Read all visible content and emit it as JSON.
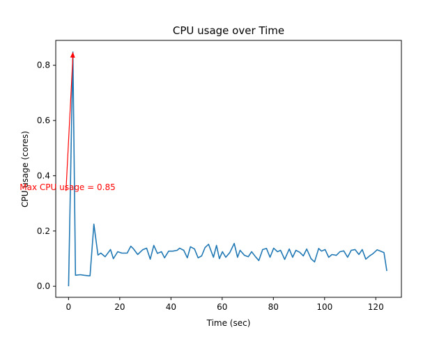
{
  "chart_data": {
    "type": "line",
    "title": "CPU usage over Time",
    "xlabel": "Time (sec)",
    "ylabel": "CPU usage (cores)",
    "xlim": [
      -5,
      130
    ],
    "ylim": [
      -0.04,
      0.89
    ],
    "xticks": [
      0,
      20,
      40,
      60,
      80,
      100,
      120
    ],
    "yticks": [
      0.0,
      0.2,
      0.4,
      0.6,
      0.8
    ],
    "ytick_labels": [
      "0.0",
      "0.2",
      "0.4",
      "0.6",
      "0.8"
    ],
    "grid": false,
    "series": [
      {
        "color": "#1f77b4",
        "x": [
          0,
          1.7,
          2.7,
          4.6,
          6.0,
          7.8,
          8.4,
          9.9,
          11.5,
          12.6,
          14.3,
          16.4,
          17.5,
          19.2,
          20.8,
          22.9,
          24.3,
          25.4,
          27.0,
          28.9,
          30.5,
          31.9,
          33.3,
          34.7,
          36.3,
          37.5,
          39.1,
          40.7,
          42.4,
          43.4,
          45.0,
          46.4,
          47.6,
          49.2,
          50.6,
          52.0,
          53.3,
          54.7,
          56.6,
          57.8,
          58.9,
          60.1,
          61.4,
          63.0,
          64.7,
          66.0,
          67.0,
          68.7,
          70.2,
          71.5,
          73.0,
          74.3,
          75.8,
          77.3,
          78.7,
          80.1,
          81.6,
          82.8,
          84.4,
          86.2,
          87.5,
          88.8,
          90.3,
          91.7,
          93.0,
          94.7,
          96.1,
          97.7,
          98.8,
          100.2,
          101.6,
          102.9,
          104.6,
          106.0,
          107.5,
          109.0,
          110.4,
          111.9,
          113.4,
          114.7,
          116.1,
          117.6,
          118.9,
          120.5,
          121.9,
          123.2,
          124.3
        ],
        "y": [
          0.0,
          0.848,
          0.04,
          0.042,
          0.04,
          0.038,
          0.038,
          0.225,
          0.113,
          0.12,
          0.107,
          0.133,
          0.1,
          0.125,
          0.12,
          0.12,
          0.145,
          0.135,
          0.115,
          0.132,
          0.138,
          0.098,
          0.148,
          0.119,
          0.125,
          0.103,
          0.127,
          0.127,
          0.13,
          0.138,
          0.13,
          0.103,
          0.143,
          0.135,
          0.103,
          0.11,
          0.14,
          0.152,
          0.105,
          0.148,
          0.1,
          0.125,
          0.105,
          0.122,
          0.155,
          0.105,
          0.13,
          0.112,
          0.107,
          0.125,
          0.107,
          0.093,
          0.133,
          0.137,
          0.105,
          0.138,
          0.125,
          0.13,
          0.097,
          0.135,
          0.105,
          0.13,
          0.123,
          0.11,
          0.135,
          0.1,
          0.088,
          0.137,
          0.127,
          0.133,
          0.105,
          0.115,
          0.112,
          0.125,
          0.128,
          0.105,
          0.13,
          0.133,
          0.115,
          0.133,
          0.098,
          0.11,
          0.118,
          0.132,
          0.127,
          0.122,
          0.055
        ]
      }
    ],
    "annotation": {
      "text": "Max CPU usage = 0.85",
      "color": "#ff0000",
      "xy": [
        1.7,
        0.848
      ],
      "text_xy": [
        -1,
        0.35
      ]
    }
  }
}
